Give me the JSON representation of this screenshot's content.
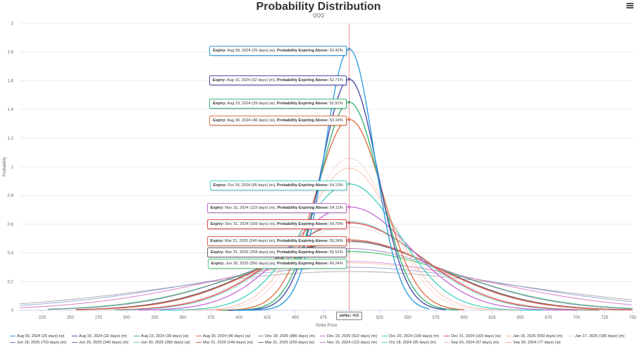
{
  "title": "Probability Distribution",
  "subtitle": "QQQ",
  "menu_icon": "hamburger-menu-icon",
  "chart_data": {
    "type": "line",
    "xlabel": "Strike Price",
    "ylabel": "Probability",
    "xlim": [
      205,
      750
    ],
    "ylim": [
      0,
      2
    ],
    "x_ticks": [
      "225",
      "250",
      "275",
      "300",
      "325",
      "350",
      "375",
      "400",
      "425",
      "450",
      "475",
      "500",
      "525",
      "550",
      "575",
      "600",
      "625",
      "650",
      "675",
      "700",
      "725",
      "750"
    ],
    "y_ticks": [
      "0",
      "0.2",
      "0.4",
      "0.6",
      "0.8",
      "1",
      "1.2",
      "1.4",
      "1.6",
      "1.8",
      "2"
    ],
    "grid": true,
    "legend_position": "bottom",
    "center_strike": 498,
    "strike_label": "strike:",
    "strike_value": "498",
    "series": [
      {
        "name": "Aug 09, 2024 (25 days) (w)",
        "color": "#2f9fe0",
        "peak": 1.82,
        "sigma": 22,
        "xmin": 395,
        "xmax": 570,
        "tooltip": true,
        "prob": "52.42%"
      },
      {
        "name": "Aug 16, 2024 (32 days) (m)",
        "color": "#4b4fa8",
        "peak": 1.61,
        "sigma": 25,
        "xmin": 390,
        "xmax": 585,
        "tooltip": true,
        "prob": "52.71%"
      },
      {
        "name": "Aug 23, 2024 (39 days) (w)",
        "color": "#3db87a",
        "peak": 1.45,
        "sigma": 27,
        "xmin": 385,
        "xmax": 595,
        "tooltip": true,
        "prob": "52.91%"
      },
      {
        "name": "Aug 30, 2024 (46 days) (w)",
        "color": "#e0734a",
        "peak": 1.33,
        "sigma": 30,
        "xmin": 380,
        "xmax": 600,
        "tooltip": true,
        "prob": "53.14%"
      },
      {
        "name": "Dec 18, 2026 (886 days) (m)",
        "color": "#8a8a8a",
        "peak": 0.27,
        "sigma": 155,
        "xmin": 205,
        "xmax": 750,
        "tooltip": false,
        "prob": ""
      },
      {
        "name": "Dec 19, 2025 (522 days) (m)",
        "color": "#cc6bd8",
        "peak": 0.34,
        "sigma": 120,
        "xmin": 205,
        "xmax": 750,
        "tooltip": false,
        "prob": ""
      },
      {
        "name": "Dec 20, 2024 (158 days) (m)",
        "color": "#45d0b8",
        "peak": 0.62,
        "sigma": 62,
        "xmin": 290,
        "xmax": 720,
        "tooltip": false,
        "prob": ""
      },
      {
        "name": "Dec 31, 2024 (169 days) (w)",
        "color": "#e04a4a",
        "peak": 0.61,
        "sigma": 64,
        "xmin": 290,
        "xmax": 720,
        "tooltip": true,
        "prob": "54.75%"
      },
      {
        "name": "Jan 16, 2026 (550 days) (m)",
        "color": "#f2b48f",
        "peak": 0.33,
        "sigma": 122,
        "xmin": 205,
        "xmax": 750,
        "tooltip": false,
        "prob": ""
      },
      {
        "name": "Jan 17, 2025 (186 days) (m)",
        "color": "#d6d6d6",
        "peak": 0.58,
        "sigma": 67,
        "xmin": 280,
        "xmax": 730,
        "tooltip": false,
        "prob": ""
      },
      {
        "name": "Jun 18, 2026 (703 days) (m)",
        "color": "#6b86c8",
        "peak": 0.3,
        "sigma": 140,
        "xmin": 205,
        "xmax": 750,
        "tooltip": false,
        "prob": ""
      },
      {
        "name": "Jun 20, 2025 (340 days) (m)",
        "color": "#7a5aa6",
        "peak": 0.43,
        "sigma": 92,
        "xmin": 230,
        "xmax": 750,
        "tooltip": false,
        "prob": ""
      },
      {
        "name": "Jun 30, 2025 (350 days) (w)",
        "color": "#5fd18a",
        "peak": 0.41,
        "sigma": 95,
        "xmin": 230,
        "xmax": 750,
        "tooltip": true,
        "prob": "60.24%"
      },
      {
        "name": "Mar 21, 2025 (249 days) (m)",
        "color": "#d9604a",
        "peak": 0.49,
        "sigma": 78,
        "xmin": 255,
        "xmax": 750,
        "tooltip": true,
        "prob": "55.24%"
      },
      {
        "name": "Mar 31, 2025 (259 days) (w)",
        "color": "#6a6a78",
        "peak": 0.48,
        "sigma": 80,
        "xmin": 255,
        "xmax": 750,
        "tooltip": true,
        "prob": "55.51%"
      },
      {
        "name": "Nov 15, 2024 (123 days) (m)",
        "color": "#c772d9",
        "peak": 0.72,
        "sigma": 54,
        "xmin": 310,
        "xmax": 700,
        "tooltip": true,
        "prob": "54.11%"
      },
      {
        "name": "Oct 18, 2024 (95 days) (m)",
        "color": "#4fd3c4",
        "peak": 0.88,
        "sigma": 44,
        "xmin": 330,
        "xmax": 670,
        "tooltip": true,
        "prob": "54.13%"
      },
      {
        "name": "Sep 20, 2024 (67 days) (m)",
        "color": "#f7c4c4",
        "peak": 1.06,
        "sigma": 36,
        "xmin": 360,
        "xmax": 640,
        "tooltip": false,
        "prob": ""
      },
      {
        "name": "Sep 30, 2024 (77 days) (w)",
        "color": "#f5a58c",
        "peak": 0.99,
        "sigma": 39,
        "xmin": 350,
        "xmax": 650,
        "tooltip": false,
        "prob": ""
      }
    ]
  },
  "tooltip_labels": {
    "expiry": "Expiry:",
    "prob": "Probability Expiring Above:"
  }
}
